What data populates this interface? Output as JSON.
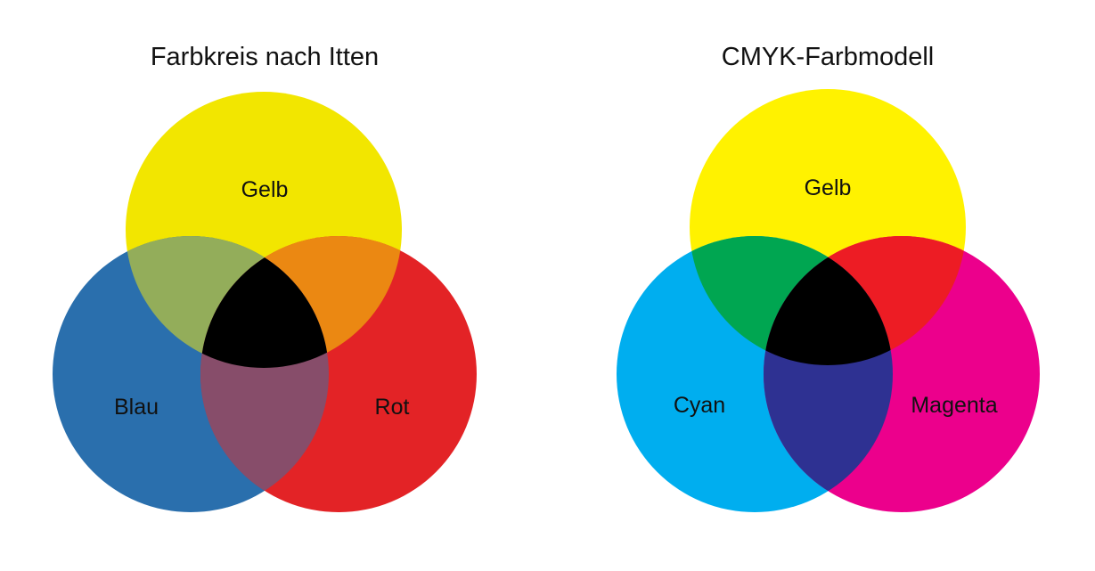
{
  "diagrams": [
    {
      "title": "Farbkreis nach Itten",
      "circles": [
        {
          "label": "Gelb",
          "color": "#f2e600"
        },
        {
          "label": "Blau",
          "color": "#2a6fad"
        },
        {
          "label": "Rot",
          "color": "#e32326"
        }
      ],
      "overlaps": {
        "top_left": "#93ad5a",
        "top_right": "#eb8812",
        "bottom": "#874d6a",
        "center": "#000000"
      }
    },
    {
      "title": "CMYK-Farbmodell",
      "circles": [
        {
          "label": "Gelb",
          "color": "#fff200"
        },
        {
          "label": "Cyan",
          "color": "#00aeef"
        },
        {
          "label": "Magenta",
          "color": "#ec008c"
        }
      ],
      "overlaps": {
        "top_left": "#00a651",
        "top_right": "#ed1c24",
        "bottom": "#2e3192",
        "center": "#000000"
      }
    }
  ]
}
